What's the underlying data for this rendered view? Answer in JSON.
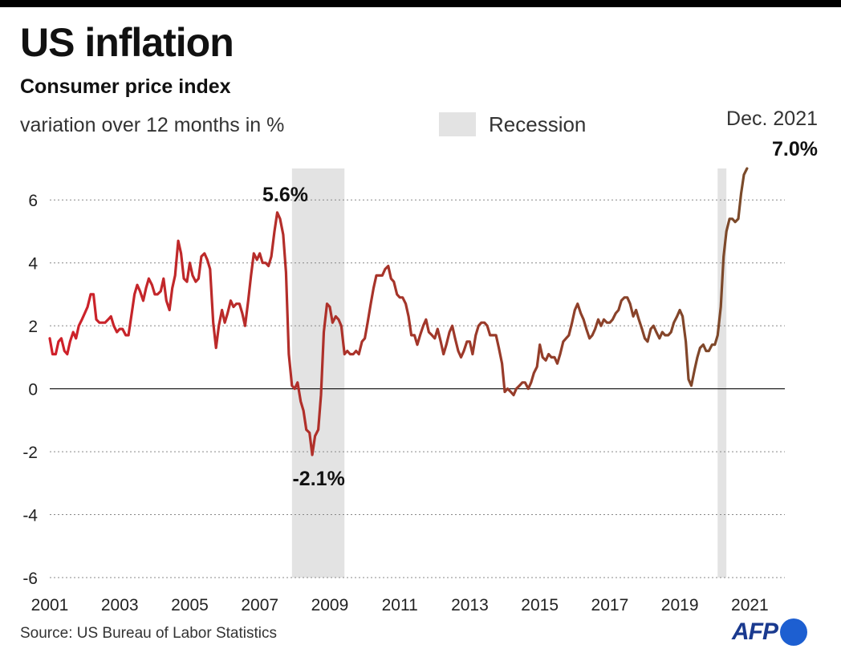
{
  "header": {
    "title": "US inflation",
    "subtitle": "Consumer price index",
    "unit_label": "variation over 12 months in %"
  },
  "legend": {
    "recession_label": "Recession",
    "recession_color": "#e3e3e3"
  },
  "footer": {
    "source": "Source: US Bureau of Labor Statistics",
    "logo_text": "AFP"
  },
  "colors": {
    "line_start": "#d0202a",
    "line_end": "#7a4a2a",
    "zero_line": "#222222",
    "grid": "#888888",
    "logo_blue": "#1d5fd1"
  },
  "chart_data": {
    "type": "line",
    "title": "US inflation",
    "subtitle": "Consumer price index",
    "ylabel": "variation over 12 months in %",
    "xlabel": "",
    "ylim": [
      -6,
      7
    ],
    "y_ticks": [
      6,
      4,
      2,
      0,
      -2,
      -4,
      -6
    ],
    "x_range": [
      2001.0,
      2022.0
    ],
    "x_ticks": [
      2001,
      2003,
      2005,
      2007,
      2009,
      2011,
      2013,
      2015,
      2017,
      2019,
      2021
    ],
    "grid": "horizontal dotted",
    "recessions": [
      {
        "start": 2007.92,
        "end": 2009.42
      },
      {
        "start": 2020.08,
        "end": 2020.33
      }
    ],
    "series": [
      {
        "points": [
          [
            2001.0,
            1.6
          ],
          [
            2001.08,
            1.1
          ],
          [
            2001.17,
            1.1
          ],
          [
            2001.25,
            1.5
          ],
          [
            2001.33,
            1.6
          ],
          [
            2001.42,
            1.2
          ],
          [
            2001.5,
            1.1
          ],
          [
            2001.58,
            1.5
          ],
          [
            2001.67,
            1.8
          ],
          [
            2001.75,
            1.6
          ],
          [
            2001.83,
            2.0
          ],
          [
            2001.92,
            2.2
          ],
          [
            2002.0,
            2.4
          ],
          [
            2002.08,
            2.6
          ],
          [
            2002.17,
            3.0
          ],
          [
            2002.25,
            3.0
          ],
          [
            2002.33,
            2.2
          ],
          [
            2002.42,
            2.1
          ],
          [
            2002.5,
            2.1
          ],
          [
            2002.58,
            2.1
          ],
          [
            2002.67,
            2.2
          ],
          [
            2002.75,
            2.3
          ],
          [
            2002.83,
            2.0
          ],
          [
            2002.92,
            1.8
          ],
          [
            2003.0,
            1.9
          ],
          [
            2003.08,
            1.9
          ],
          [
            2003.17,
            1.7
          ],
          [
            2003.25,
            1.7
          ],
          [
            2003.33,
            2.3
          ],
          [
            2003.42,
            3.0
          ],
          [
            2003.5,
            3.3
          ],
          [
            2003.58,
            3.1
          ],
          [
            2003.67,
            2.8
          ],
          [
            2003.75,
            3.2
          ],
          [
            2003.83,
            3.5
          ],
          [
            2003.92,
            3.3
          ],
          [
            2004.0,
            3.0
          ],
          [
            2004.08,
            3.0
          ],
          [
            2004.17,
            3.1
          ],
          [
            2004.25,
            3.5
          ],
          [
            2004.33,
            2.8
          ],
          [
            2004.42,
            2.5
          ],
          [
            2004.5,
            3.2
          ],
          [
            2004.58,
            3.6
          ],
          [
            2004.67,
            4.7
          ],
          [
            2004.75,
            4.3
          ],
          [
            2004.83,
            3.5
          ],
          [
            2004.92,
            3.4
          ],
          [
            2005.0,
            4.0
          ],
          [
            2005.08,
            3.6
          ],
          [
            2005.17,
            3.4
          ],
          [
            2005.25,
            3.5
          ],
          [
            2005.33,
            4.2
          ],
          [
            2005.42,
            4.3
          ],
          [
            2005.5,
            4.1
          ],
          [
            2005.58,
            3.8
          ],
          [
            2005.67,
            2.1
          ],
          [
            2005.75,
            1.3
          ],
          [
            2005.83,
            2.0
          ],
          [
            2005.92,
            2.5
          ],
          [
            2006.0,
            2.1
          ],
          [
            2006.08,
            2.4
          ],
          [
            2006.17,
            2.8
          ],
          [
            2006.25,
            2.6
          ],
          [
            2006.33,
            2.7
          ],
          [
            2006.42,
            2.7
          ],
          [
            2006.5,
            2.4
          ],
          [
            2006.58,
            2.0
          ],
          [
            2006.67,
            2.8
          ],
          [
            2006.75,
            3.6
          ],
          [
            2006.83,
            4.3
          ],
          [
            2006.92,
            4.1
          ],
          [
            2007.0,
            4.3
          ],
          [
            2007.08,
            4.0
          ],
          [
            2007.17,
            4.0
          ],
          [
            2007.25,
            3.9
          ],
          [
            2007.33,
            4.2
          ],
          [
            2007.42,
            5.0
          ],
          [
            2007.5,
            5.6
          ],
          [
            2007.58,
            5.4
          ],
          [
            2007.67,
            4.9
          ],
          [
            2007.75,
            3.7
          ],
          [
            2007.83,
            1.1
          ],
          [
            2007.92,
            0.1
          ],
          [
            2008.0,
            0.0
          ],
          [
            2008.08,
            0.2
          ],
          [
            2008.17,
            -0.4
          ],
          [
            2008.25,
            -0.7
          ],
          [
            2008.33,
            -1.3
          ],
          [
            2008.42,
            -1.4
          ],
          [
            2008.5,
            -2.1
          ],
          [
            2008.58,
            -1.5
          ],
          [
            2008.67,
            -1.3
          ],
          [
            2008.75,
            -0.2
          ],
          [
            2008.83,
            1.8
          ],
          [
            2008.92,
            2.7
          ],
          [
            2009.0,
            2.6
          ],
          [
            2009.08,
            2.1
          ],
          [
            2009.17,
            2.3
          ],
          [
            2009.25,
            2.2
          ],
          [
            2009.33,
            2.0
          ],
          [
            2009.42,
            1.1
          ],
          [
            2009.5,
            1.2
          ],
          [
            2009.58,
            1.1
          ],
          [
            2009.67,
            1.1
          ],
          [
            2009.75,
            1.2
          ],
          [
            2009.83,
            1.1
          ],
          [
            2009.92,
            1.5
          ],
          [
            2010.0,
            1.6
          ],
          [
            2010.08,
            2.1
          ],
          [
            2010.17,
            2.7
          ],
          [
            2010.25,
            3.2
          ],
          [
            2010.33,
            3.6
          ],
          [
            2010.42,
            3.6
          ],
          [
            2010.5,
            3.6
          ],
          [
            2010.58,
            3.8
          ],
          [
            2010.67,
            3.9
          ],
          [
            2010.75,
            3.5
          ],
          [
            2010.83,
            3.4
          ],
          [
            2010.92,
            3.0
          ],
          [
            2011.0,
            2.9
          ],
          [
            2011.08,
            2.9
          ],
          [
            2011.17,
            2.7
          ],
          [
            2011.25,
            2.3
          ],
          [
            2011.33,
            1.7
          ],
          [
            2011.42,
            1.7
          ],
          [
            2011.5,
            1.4
          ],
          [
            2011.58,
            1.7
          ],
          [
            2011.67,
            2.0
          ],
          [
            2011.75,
            2.2
          ],
          [
            2011.83,
            1.8
          ],
          [
            2011.92,
            1.7
          ],
          [
            2012.0,
            1.6
          ],
          [
            2012.08,
            1.9
          ],
          [
            2012.17,
            1.5
          ],
          [
            2012.25,
            1.1
          ],
          [
            2012.33,
            1.4
          ],
          [
            2012.42,
            1.8
          ],
          [
            2012.5,
            2.0
          ],
          [
            2012.58,
            1.6
          ],
          [
            2012.67,
            1.2
          ],
          [
            2012.75,
            1.0
          ],
          [
            2012.83,
            1.2
          ],
          [
            2012.92,
            1.5
          ],
          [
            2013.0,
            1.5
          ],
          [
            2013.08,
            1.1
          ],
          [
            2013.17,
            1.7
          ],
          [
            2013.25,
            2.0
          ],
          [
            2013.33,
            2.1
          ],
          [
            2013.42,
            2.1
          ],
          [
            2013.5,
            2.0
          ],
          [
            2013.58,
            1.7
          ],
          [
            2013.67,
            1.7
          ],
          [
            2013.75,
            1.7
          ],
          [
            2013.83,
            1.3
          ],
          [
            2013.92,
            0.8
          ],
          [
            2014.0,
            -0.1
          ],
          [
            2014.08,
            0.0
          ],
          [
            2014.17,
            -0.1
          ],
          [
            2014.25,
            -0.2
          ],
          [
            2014.33,
            0.0
          ],
          [
            2014.42,
            0.1
          ],
          [
            2014.5,
            0.2
          ],
          [
            2014.58,
            0.2
          ],
          [
            2014.67,
            0.0
          ],
          [
            2014.75,
            0.2
          ],
          [
            2014.83,
            0.5
          ],
          [
            2014.92,
            0.7
          ],
          [
            2015.0,
            1.4
          ],
          [
            2015.08,
            1.0
          ],
          [
            2015.17,
            0.9
          ],
          [
            2015.25,
            1.1
          ],
          [
            2015.33,
            1.0
          ],
          [
            2015.42,
            1.0
          ],
          [
            2015.5,
            0.8
          ],
          [
            2015.58,
            1.1
          ],
          [
            2015.67,
            1.5
          ],
          [
            2015.75,
            1.6
          ],
          [
            2015.83,
            1.7
          ],
          [
            2015.92,
            2.1
          ],
          [
            2016.0,
            2.5
          ],
          [
            2016.08,
            2.7
          ],
          [
            2016.17,
            2.4
          ],
          [
            2016.25,
            2.2
          ],
          [
            2016.33,
            1.9
          ],
          [
            2016.42,
            1.6
          ],
          [
            2016.5,
            1.7
          ],
          [
            2016.58,
            1.9
          ],
          [
            2016.67,
            2.2
          ],
          [
            2016.75,
            2.0
          ],
          [
            2016.83,
            2.2
          ],
          [
            2016.92,
            2.1
          ],
          [
            2017.0,
            2.1
          ],
          [
            2017.08,
            2.2
          ],
          [
            2017.17,
            2.4
          ],
          [
            2017.25,
            2.5
          ],
          [
            2017.33,
            2.8
          ],
          [
            2017.42,
            2.9
          ],
          [
            2017.5,
            2.9
          ],
          [
            2017.58,
            2.7
          ],
          [
            2017.67,
            2.3
          ],
          [
            2017.75,
            2.5
          ],
          [
            2017.83,
            2.2
          ],
          [
            2017.92,
            1.9
          ],
          [
            2018.0,
            1.6
          ],
          [
            2018.08,
            1.5
          ],
          [
            2018.17,
            1.9
          ],
          [
            2018.25,
            2.0
          ],
          [
            2018.33,
            1.8
          ],
          [
            2018.42,
            1.6
          ],
          [
            2018.5,
            1.8
          ],
          [
            2018.58,
            1.7
          ],
          [
            2018.67,
            1.7
          ],
          [
            2018.75,
            1.8
          ],
          [
            2018.83,
            2.1
          ],
          [
            2018.92,
            2.3
          ],
          [
            2019.0,
            2.5
          ],
          [
            2019.08,
            2.3
          ],
          [
            2019.17,
            1.5
          ],
          [
            2019.25,
            0.3
          ],
          [
            2019.33,
            0.1
          ],
          [
            2019.42,
            0.6
          ],
          [
            2019.5,
            1.0
          ],
          [
            2019.58,
            1.3
          ],
          [
            2019.67,
            1.4
          ],
          [
            2019.75,
            1.2
          ],
          [
            2019.83,
            1.2
          ],
          [
            2019.92,
            1.4
          ],
          [
            2020.0,
            1.4
          ],
          [
            2020.08,
            1.7
          ],
          [
            2020.17,
            2.6
          ],
          [
            2020.25,
            4.2
          ],
          [
            2020.33,
            5.0
          ],
          [
            2020.42,
            5.4
          ],
          [
            2020.5,
            5.4
          ],
          [
            2020.58,
            5.3
          ],
          [
            2020.67,
            5.4
          ],
          [
            2020.75,
            6.2
          ],
          [
            2020.83,
            6.8
          ],
          [
            2020.92,
            7.0
          ]
        ]
      }
    ],
    "annotations": [
      {
        "label": "5.6%",
        "x": 2007.5,
        "y": 5.6,
        "position": "above"
      },
      {
        "label": "-2.1%",
        "x": 2008.5,
        "y": -2.1,
        "position": "below"
      },
      {
        "label": "7.0%",
        "sublabel": "Dec. 2021",
        "x": 2020.92,
        "y": 7.0,
        "position": "above"
      }
    ]
  }
}
